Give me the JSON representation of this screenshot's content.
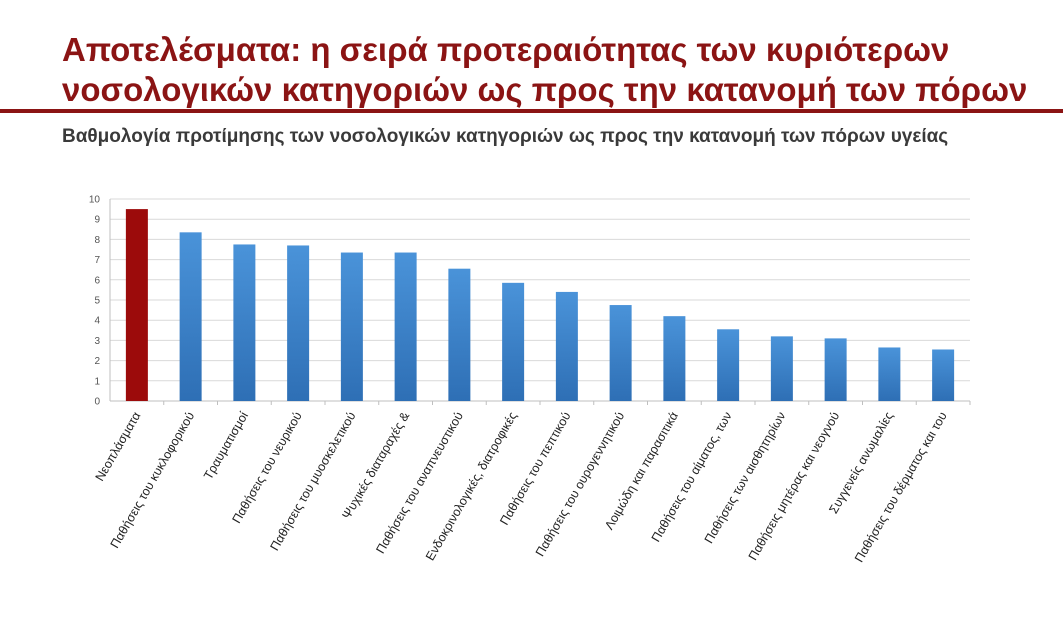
{
  "slide": {
    "title": "Αποτελέσματα: η σειρά προτεραιότητας των κυριότερων νοσολογικών κατηγοριών ως προς την κατανομή των πόρων",
    "subtitle": "Βαθμολογία προτίμησης των νοσολογικών κατηγοριών ως προς την κατανομή των πόρων υγείας"
  },
  "colors": {
    "title": "#8b1414",
    "highlight_bar": "#9c0b0b",
    "bar": "#3f86cf",
    "gridline": "#d9d9d9"
  },
  "chart_data": {
    "type": "bar",
    "title": "Βαθμολογία προτίμησης των νοσολογικών κατηγοριών ως προς την κατανομή των πόρων υγείας",
    "categories": [
      "Νεοπλάσματα",
      "Παθήσεις του κυκλοφορικού",
      "Τραυματισμοί",
      "Παθήσεις του νευρικού",
      "Παθήσεις του μυοσκελετικού",
      "Ψυχικές διαταραχές &",
      "Παθήσεις του αναπνευστικού",
      "Ενδοκρινολογικές, διατροφικές",
      "Παθήσεις του πεπτικού",
      "Παθήσεις του ουρογεννητικού",
      "Λοιμώδη και παρασιτικά",
      "Παθήσεις του αίματος, των",
      "Παθήσεις των αισθητηρίων",
      "Παθήσεις μητέρας και νεογνού",
      "Συγγενείς ανωμαλίες",
      "Παθήσεις του δέρματος και του"
    ],
    "values": [
      9.5,
      8.35,
      7.75,
      7.7,
      7.35,
      7.35,
      6.55,
      5.85,
      5.4,
      4.75,
      4.2,
      3.55,
      3.2,
      3.1,
      2.65,
      2.55
    ],
    "highlight_index": 0,
    "ylim": [
      0,
      10
    ],
    "yticks": [
      0,
      1,
      2,
      3,
      4,
      5,
      6,
      7,
      8,
      9,
      10
    ],
    "grid": true,
    "legend": "none",
    "xlabel": "",
    "ylabel": ""
  }
}
